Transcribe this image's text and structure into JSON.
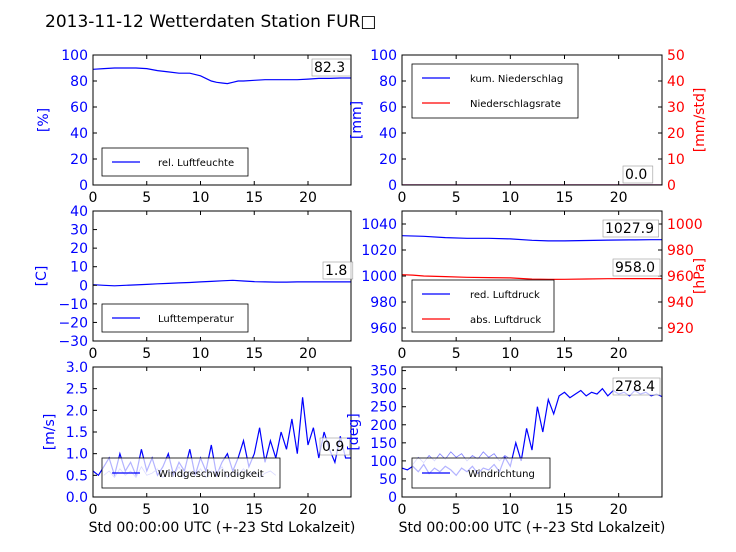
{
  "title": "2013-11-12 Wetterdaten Station FUR□",
  "colors": {
    "primary_axis": "#0000ff",
    "secondary_axis": "#ff0000",
    "frame": "#000000",
    "background": "#ffffff"
  },
  "chart_data": [
    {
      "panel": "humidity",
      "type": "line",
      "ylabel": "[%]",
      "xlim": [
        0,
        24
      ],
      "ylim": [
        0,
        100
      ],
      "xticks": [
        "0",
        "5",
        "10",
        "15",
        "20"
      ],
      "yticks": [
        "0",
        "20",
        "40",
        "60",
        "80",
        "100"
      ],
      "legend_placement": "lower-left",
      "value_label": "82.3",
      "series": [
        {
          "name": "rel. Luftfeuchte",
          "color": "#0000ff",
          "x": [
            0,
            1,
            2,
            3,
            4,
            5,
            6,
            7,
            8,
            9,
            10,
            10.5,
            11,
            11.5,
            12,
            12.5,
            13,
            13.5,
            14,
            15,
            16,
            17,
            18,
            19,
            20,
            21,
            22,
            23,
            24
          ],
          "y": [
            89,
            89.5,
            90,
            90,
            90,
            89.5,
            88,
            87,
            86,
            86,
            84,
            82,
            80,
            79,
            78.5,
            78,
            79,
            80,
            80,
            80.5,
            81,
            81,
            81,
            81,
            81.5,
            82,
            82,
            82.3,
            82.3
          ]
        }
      ]
    },
    {
      "panel": "precipitation",
      "type": "line",
      "ylabel": "[mm]",
      "y2label": "[mm/std]",
      "xlim": [
        0,
        24
      ],
      "ylim": [
        0,
        100
      ],
      "y2lim": [
        0,
        50
      ],
      "xticks": [
        "0",
        "5",
        "10",
        "15",
        "20"
      ],
      "yticks": [
        "0",
        "20",
        "40",
        "60",
        "80",
        "100"
      ],
      "y2ticks": [
        "0",
        "10",
        "20",
        "30",
        "40",
        "50"
      ],
      "legend_placement": "upper-left",
      "value_label": "0.0",
      "value_label_2": "0.0",
      "series": [
        {
          "name": "kum. Niederschlag",
          "color": "#0000ff",
          "axis": "left",
          "x": [
            0,
            24
          ],
          "y": [
            0,
            0
          ]
        },
        {
          "name": "Niederschlagsrate",
          "color": "#ff0000",
          "axis": "right",
          "x": [
            0,
            24
          ],
          "y": [
            0,
            0
          ]
        }
      ]
    },
    {
      "panel": "temperature",
      "type": "line",
      "ylabel": "[C]",
      "xlim": [
        0,
        24
      ],
      "ylim": [
        -30,
        40
      ],
      "xticks": [
        "0",
        "5",
        "10",
        "15",
        "20"
      ],
      "yticks": [
        "−30",
        "−20",
        "−10",
        "0",
        "10",
        "20",
        "30",
        "40"
      ],
      "legend_placement": "lower-left",
      "value_label": "1.8",
      "series": [
        {
          "name": "Lufttemperatur",
          "color": "#0000ff",
          "x": [
            0,
            1,
            2,
            3,
            4,
            5,
            6,
            7,
            8,
            9,
            10,
            11,
            12,
            13,
            14,
            15,
            16,
            17,
            18,
            19,
            20,
            21,
            22,
            23,
            24
          ],
          "y": [
            0.3,
            0,
            -0.3,
            0,
            0.2,
            0.5,
            0.8,
            1,
            1.3,
            1.5,
            1.8,
            2.1,
            2.4,
            2.7,
            2.3,
            2.0,
            1.8,
            1.7,
            1.7,
            1.8,
            1.8,
            1.8,
            1.8,
            1.8,
            1.8
          ]
        }
      ]
    },
    {
      "panel": "pressure",
      "type": "line",
      "ylabel": "",
      "y2label": "[hPa]",
      "xlim": [
        0,
        24
      ],
      "ylim": [
        950,
        1050
      ],
      "y2lim": [
        910,
        1010
      ],
      "xticks": [
        "0",
        "5",
        "10",
        "15",
        "20"
      ],
      "yticks": [
        "960",
        "980",
        "1000",
        "1020",
        "1040"
      ],
      "y2ticks": [
        "920",
        "940",
        "960",
        "980",
        "1000"
      ],
      "legend_placement": "lower-left",
      "value_label": "1027.9",
      "value_label_2": "958.0",
      "series": [
        {
          "name": "red. Luftdruck",
          "color": "#0000ff",
          "axis": "left",
          "x": [
            0,
            2,
            4,
            6,
            8,
            10,
            12,
            13.5,
            15,
            17,
            19,
            21,
            23,
            24
          ],
          "y": [
            1031,
            1030.5,
            1029.5,
            1029,
            1029,
            1028.5,
            1027.5,
            1027,
            1027,
            1027.3,
            1027.6,
            1027.8,
            1027.9,
            1027.9
          ]
        },
        {
          "name": "abs. Luftdruck",
          "color": "#ff0000",
          "axis": "right",
          "x": [
            0,
            1,
            2,
            4,
            6,
            8,
            10,
            12,
            13.5,
            15,
            17,
            19,
            21,
            23,
            24
          ],
          "y": [
            961,
            960.7,
            960,
            959.5,
            959,
            958.8,
            958.5,
            957.6,
            957.4,
            957.5,
            957.7,
            957.9,
            958,
            958,
            958
          ]
        }
      ]
    },
    {
      "panel": "windspeed",
      "type": "line",
      "ylabel": "[m/s]",
      "xlabel": "Std 00:00:00 UTC (+-23 Std Lokalzeit)",
      "xlim": [
        0,
        24
      ],
      "ylim": [
        0,
        3
      ],
      "xticks": [
        "0",
        "5",
        "10",
        "15",
        "20"
      ],
      "yticks": [
        "0.0",
        "0.5",
        "1.0",
        "1.5",
        "2.0",
        "2.5",
        "3.0"
      ],
      "legend_placement": "lower-left",
      "value_label": "0.9",
      "series": [
        {
          "name": "Windgeschwindigkeit",
          "color": "#0000ff",
          "x": [
            0,
            0.5,
            1,
            1.5,
            2,
            2.5,
            3,
            3.5,
            4,
            4.5,
            5,
            5.5,
            6,
            6.5,
            7,
            7.5,
            8,
            8.5,
            9,
            9.5,
            10,
            10.5,
            11,
            11.5,
            12,
            12.5,
            13,
            13.5,
            14,
            14.5,
            15,
            15.5,
            16,
            16.5,
            17,
            17.5,
            18,
            18.5,
            19,
            19.5,
            20,
            20.5,
            21,
            21.5,
            22,
            22.5,
            23,
            23.5,
            24
          ],
          "y": [
            0.6,
            0.5,
            0.7,
            0.9,
            0.5,
            1.0,
            0.6,
            0.8,
            0.5,
            1.1,
            0.6,
            0.9,
            0.5,
            0.7,
            1.0,
            0.5,
            0.8,
            0.6,
            1.1,
            0.5,
            0.9,
            0.6,
            1.2,
            0.5,
            0.8,
            1.0,
            0.6,
            0.9,
            1.3,
            0.7,
            1.0,
            1.6,
            0.8,
            1.3,
            0.9,
            1.5,
            1.1,
            1.8,
            1.0,
            2.3,
            1.2,
            1.6,
            0.9,
            1.5,
            1.1,
            0.8,
            1.4,
            0.9,
            0.9
          ]
        },
        {
          "name": "",
          "color": "#8080ff",
          "x": [
            1,
            1.5,
            2,
            2.5,
            3,
            3.5,
            4,
            4.5,
            5,
            5.5,
            6,
            6.5,
            7,
            7.5,
            8,
            8.5,
            9,
            9.5,
            10,
            10.5,
            11,
            11.5,
            12,
            12.5,
            13,
            13.5,
            14,
            14.5,
            15,
            15.5,
            16,
            16.5,
            17
          ],
          "y": [
            0.5,
            0.6,
            0.45,
            0.65,
            0.5,
            0.6,
            0.45,
            0.7,
            0.5,
            0.55,
            0.65,
            0.45,
            0.6,
            0.5,
            0.7,
            0.45,
            0.6,
            0.5,
            0.65,
            0.45,
            0.6,
            0.55,
            0.7,
            0.45,
            0.6,
            0.5,
            0.65,
            0.5,
            0.6,
            0.45,
            0.55,
            0.6,
            0.5
          ]
        }
      ]
    },
    {
      "panel": "winddirection",
      "type": "line",
      "ylabel": "[deg]",
      "xlabel": "Std 00:00:00 UTC (+-23 Std Lokalzeit)",
      "xlim": [
        0,
        24
      ],
      "ylim": [
        0,
        360
      ],
      "xticks": [
        "0",
        "5",
        "10",
        "15",
        "20"
      ],
      "yticks": [
        "0",
        "50",
        "100",
        "150",
        "200",
        "250",
        "300",
        "350"
      ],
      "legend_placement": "lower-left",
      "value_label": "278.4",
      "series": [
        {
          "name": "Windrichtung",
          "color": "#0000ff",
          "x": [
            0,
            0.5,
            1,
            1.5,
            2,
            2.5,
            3,
            3.5,
            4,
            4.5,
            5,
            5.5,
            6,
            6.5,
            7,
            7.5,
            8,
            8.5,
            9,
            9.5,
            10,
            10.5,
            11,
            11.5,
            12,
            12.5,
            13,
            13.5,
            14,
            14.5,
            15,
            15.5,
            16,
            16.5,
            17,
            17.5,
            18,
            18.5,
            19,
            19.5,
            20,
            20.5,
            21,
            21.5,
            22,
            22.5,
            23,
            23.5,
            24
          ],
          "y": [
            80,
            75,
            85,
            70,
            90,
            65,
            80,
            70,
            85,
            75,
            60,
            80,
            70,
            85,
            65,
            80,
            75,
            90,
            70,
            110,
            85,
            150,
            100,
            190,
            130,
            250,
            180,
            270,
            230,
            280,
            290,
            275,
            285,
            295,
            280,
            290,
            285,
            300,
            280,
            295,
            285,
            290,
            280,
            295,
            285,
            290,
            280,
            285,
            278
          ]
        },
        {
          "name": "",
          "color": "#8080ff",
          "x": [
            1,
            1.5,
            2,
            2.5,
            3,
            3.5,
            4,
            4.5,
            5,
            5.5,
            6,
            6.5,
            7,
            7.5,
            8,
            8.5,
            9,
            9.5,
            10
          ],
          "y": [
            90,
            110,
            95,
            115,
            100,
            120,
            105,
            125,
            110,
            120,
            100,
            115,
            105,
            125,
            110,
            120,
            100,
            115,
            105
          ]
        }
      ]
    }
  ]
}
